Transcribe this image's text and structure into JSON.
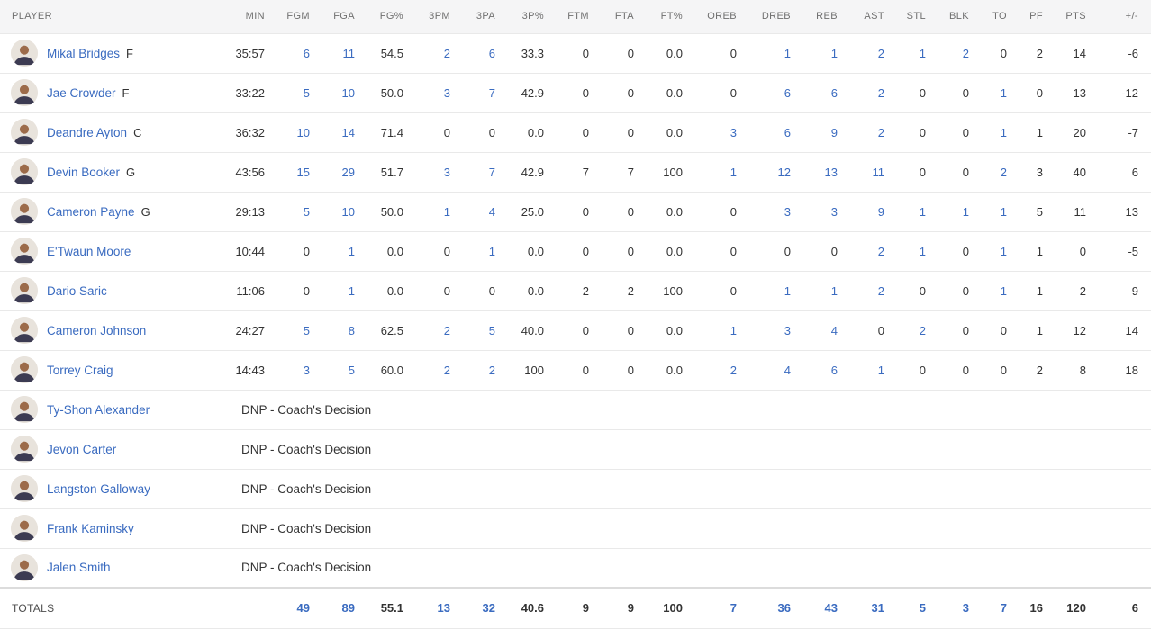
{
  "colors": {
    "link_blue": "#3a6bc0",
    "text_dark": "#333333",
    "header_text": "#6f6f6f",
    "header_bg": "#f5f5f6",
    "row_border": "#e9e9e9"
  },
  "table": {
    "columns": [
      "PLAYER",
      "MIN",
      "FGM",
      "FGA",
      "FG%",
      "3PM",
      "3PA",
      "3P%",
      "FTM",
      "FTA",
      "FT%",
      "OREB",
      "DREB",
      "REB",
      "AST",
      "STL",
      "BLK",
      "TO",
      "PF",
      "PTS",
      "+/-"
    ],
    "link_columns": [
      "FGM",
      "FGA",
      "3PM",
      "3PA",
      "OREB",
      "DREB",
      "REB",
      "AST",
      "STL",
      "BLK",
      "TO"
    ],
    "players": [
      {
        "name": "Mikal Bridges",
        "position": "F",
        "stats": [
          "35:57",
          "6",
          "11",
          "54.5",
          "2",
          "6",
          "33.3",
          "0",
          "0",
          "0.0",
          "0",
          "1",
          "1",
          "2",
          "1",
          "2",
          "0",
          "2",
          "14",
          "-6"
        ]
      },
      {
        "name": "Jae Crowder",
        "position": "F",
        "stats": [
          "33:22",
          "5",
          "10",
          "50.0",
          "3",
          "7",
          "42.9",
          "0",
          "0",
          "0.0",
          "0",
          "6",
          "6",
          "2",
          "0",
          "0",
          "1",
          "0",
          "13",
          "-12"
        ]
      },
      {
        "name": "Deandre Ayton",
        "position": "C",
        "stats": [
          "36:32",
          "10",
          "14",
          "71.4",
          "0",
          "0",
          "0.0",
          "0",
          "0",
          "0.0",
          "3",
          "6",
          "9",
          "2",
          "0",
          "0",
          "1",
          "1",
          "20",
          "-7"
        ]
      },
      {
        "name": "Devin Booker",
        "position": "G",
        "stats": [
          "43:56",
          "15",
          "29",
          "51.7",
          "3",
          "7",
          "42.9",
          "7",
          "7",
          "100",
          "1",
          "12",
          "13",
          "11",
          "0",
          "0",
          "2",
          "3",
          "40",
          "6"
        ]
      },
      {
        "name": "Cameron Payne",
        "position": "G",
        "stats": [
          "29:13",
          "5",
          "10",
          "50.0",
          "1",
          "4",
          "25.0",
          "0",
          "0",
          "0.0",
          "0",
          "3",
          "3",
          "9",
          "1",
          "1",
          "1",
          "5",
          "11",
          "13"
        ]
      },
      {
        "name": "E'Twaun Moore",
        "position": "",
        "stats": [
          "10:44",
          "0",
          "1",
          "0.0",
          "0",
          "1",
          "0.0",
          "0",
          "0",
          "0.0",
          "0",
          "0",
          "0",
          "2",
          "1",
          "0",
          "1",
          "1",
          "0",
          "-5"
        ]
      },
      {
        "name": "Dario Saric",
        "position": "",
        "stats": [
          "11:06",
          "0",
          "1",
          "0.0",
          "0",
          "0",
          "0.0",
          "2",
          "2",
          "100",
          "0",
          "1",
          "1",
          "2",
          "0",
          "0",
          "1",
          "1",
          "2",
          "9"
        ]
      },
      {
        "name": "Cameron Johnson",
        "position": "",
        "stats": [
          "24:27",
          "5",
          "8",
          "62.5",
          "2",
          "5",
          "40.0",
          "0",
          "0",
          "0.0",
          "1",
          "3",
          "4",
          "0",
          "2",
          "0",
          "0",
          "1",
          "12",
          "14"
        ]
      },
      {
        "name": "Torrey Craig",
        "position": "",
        "stats": [
          "14:43",
          "3",
          "5",
          "60.0",
          "2",
          "2",
          "100",
          "0",
          "0",
          "0.0",
          "2",
          "4",
          "6",
          "1",
          "0",
          "0",
          "0",
          "2",
          "8",
          "18"
        ]
      },
      {
        "name": "Ty-Shon Alexander",
        "position": "",
        "dnp": "DNP - Coach's Decision"
      },
      {
        "name": "Jevon Carter",
        "position": "",
        "dnp": "DNP - Coach's Decision"
      },
      {
        "name": "Langston Galloway",
        "position": "",
        "dnp": "DNP - Coach's Decision"
      },
      {
        "name": "Frank Kaminsky",
        "position": "",
        "dnp": "DNP - Coach's Decision"
      },
      {
        "name": "Jalen Smith",
        "position": "",
        "dnp": "DNP - Coach's Decision"
      }
    ],
    "totals": {
      "label": "TOTALS",
      "stats": [
        "",
        "49",
        "89",
        "55.1",
        "13",
        "32",
        "40.6",
        "9",
        "9",
        "100",
        "7",
        "36",
        "43",
        "31",
        "5",
        "3",
        "7",
        "16",
        "120",
        "6"
      ]
    }
  }
}
